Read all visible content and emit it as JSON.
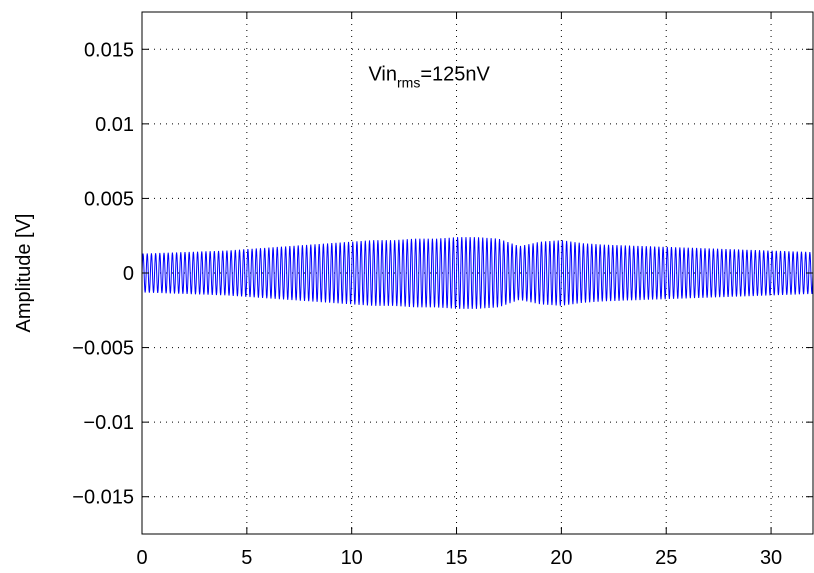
{
  "chart_data": {
    "type": "line",
    "title": "",
    "xlabel": "",
    "ylabel": "Amplitude [V]",
    "xlim": [
      0,
      32
    ],
    "ylim": [
      -0.0175,
      0.0175
    ],
    "grid": true,
    "grid_style": "dotted",
    "x_ticks": [
      0,
      5,
      10,
      15,
      20,
      25,
      30
    ],
    "x_tick_labels": [
      "0",
      "5",
      "10",
      "15",
      "20",
      "25",
      "30"
    ],
    "y_ticks": [
      0.015,
      0.01,
      0.005,
      0,
      -0.005,
      -0.01,
      -0.015
    ],
    "y_tick_labels": [
      "0.015",
      "0.01",
      "0.005",
      "0",
      "−0.005",
      "−0.01",
      "−0.015"
    ],
    "annotation": {
      "main": "Vin",
      "subscript": "rms",
      "suffix": "=125nV",
      "x": 10.8,
      "y": 0.0129
    },
    "series": [
      {
        "color": "#0000ff",
        "oscillation_period": 0.2,
        "envelope": {
          "x": [
            0,
            2,
            4,
            6,
            8,
            10,
            11,
            12,
            13,
            14,
            15,
            16,
            17,
            18,
            19,
            20,
            21,
            22,
            24,
            26,
            28,
            30,
            32
          ],
          "amplitude": [
            0.0013,
            0.0014,
            0.0015,
            0.0017,
            0.0019,
            0.0021,
            0.0022,
            0.0022,
            0.0023,
            0.0023,
            0.0024,
            0.0024,
            0.0023,
            0.0018,
            0.0021,
            0.0022,
            0.002,
            0.0019,
            0.0018,
            0.0017,
            0.0016,
            0.0015,
            0.0014
          ]
        }
      }
    ]
  }
}
